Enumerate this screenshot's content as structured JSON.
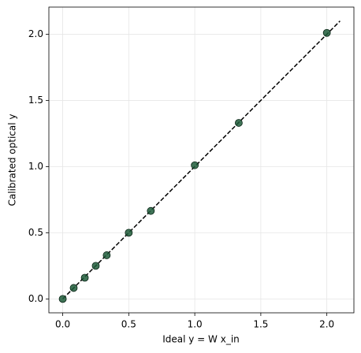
{
  "chart_data": {
    "type": "scatter",
    "xlabel": "Ideal y = W x_in",
    "ylabel": "Calibrated optical y",
    "series": [
      {
        "color": "#1e5c3a",
        "x": [
          0,
          0.083,
          0.167,
          0.25,
          0.333,
          0.5,
          0.667,
          1.0,
          1.333,
          2.0
        ],
        "values": [
          0,
          0.083,
          0.16,
          0.25,
          0.33,
          0.5,
          0.665,
          1.01,
          1.33,
          2.01
        ]
      }
    ],
    "reference_line": {
      "color": "#000000",
      "dashed": true,
      "x": [
        0,
        2.1
      ],
      "values": [
        0,
        2.1
      ]
    },
    "xlim": [
      -0.105,
      2.205
    ],
    "ylim": [
      -0.105,
      2.205
    ],
    "xticks": [
      {
        "value": 0,
        "label": "0.0"
      },
      {
        "value": 0.5,
        "label": "0.5"
      },
      {
        "value": 1,
        "label": "1.0"
      },
      {
        "value": 1.5,
        "label": "1.5"
      },
      {
        "value": 2,
        "label": "2.0"
      }
    ],
    "yticks": [
      {
        "value": 0,
        "label": "0.0"
      },
      {
        "value": 0.5,
        "label": "0.5"
      },
      {
        "value": 1,
        "label": "1.0"
      },
      {
        "value": 1.5,
        "label": "1.5"
      },
      {
        "value": 2,
        "label": "2.0"
      }
    ],
    "grid": true
  }
}
